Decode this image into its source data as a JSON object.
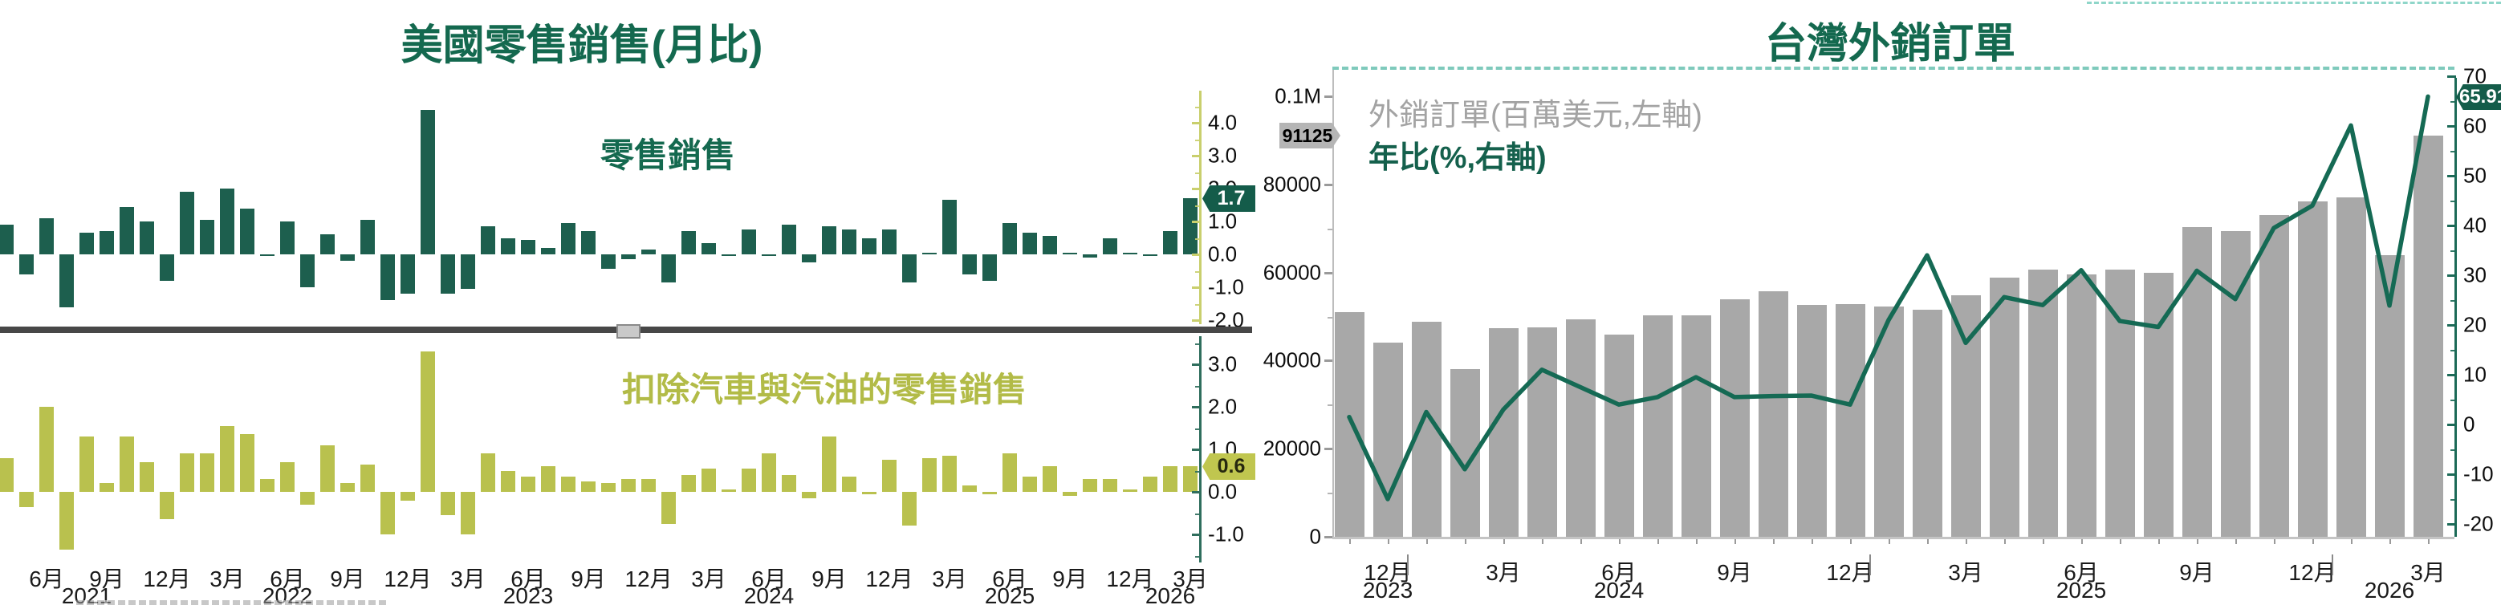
{
  "chart_data": [
    {
      "id": "us_retail_sales_mom",
      "type": "bar",
      "title": "美國零售銷售(月比)",
      "series_label": "零售銷售",
      "unit": "%",
      "x_start": "2021-04",
      "x_end": "2026-03",
      "x_frequency": "monthly",
      "ylim": [
        -2.1,
        4.9
      ],
      "y_ticks": [
        4.0,
        3.0,
        2.0,
        1.0,
        0.0,
        -1.0,
        -2.0
      ],
      "last_value_label": "1.7",
      "values": [
        0.9,
        -0.6,
        1.1,
        -1.6,
        0.65,
        0.7,
        1.45,
        1.0,
        -0.8,
        1.9,
        1.05,
        2.0,
        1.4,
        -0.05,
        1.0,
        -1.0,
        0.6,
        -0.2,
        1.05,
        -1.4,
        -1.2,
        4.4,
        -1.2,
        -1.05,
        0.85,
        0.5,
        0.45,
        0.2,
        0.95,
        0.7,
        -0.45,
        -0.15,
        0.15,
        -0.85,
        0.7,
        0.35,
        -0.05,
        0.75,
        -0.05,
        0.9,
        -0.25,
        0.85,
        0.75,
        0.5,
        0.75,
        -0.85,
        0.05,
        1.65,
        -0.6,
        -0.8,
        0.95,
        0.65,
        0.55,
        0.05,
        -0.1,
        0.5,
        0.03,
        -0.05,
        0.7,
        1.7
      ],
      "x_tick_labels": [
        "6月",
        "9月",
        "12月",
        "3月",
        "6月",
        "9月",
        "12月",
        "3月",
        "6月",
        "9月",
        "12月",
        "3月",
        "6月",
        "9月",
        "12月",
        "3月",
        "6月",
        "9月",
        "12月",
        "3月"
      ],
      "x_tick_indices": [
        2,
        5,
        8,
        11,
        14,
        17,
        20,
        23,
        26,
        29,
        32,
        35,
        38,
        41,
        44,
        47,
        50,
        53,
        56,
        59
      ],
      "year_labels": [
        {
          "i": 4,
          "label": "2021"
        },
        {
          "i": 14,
          "label": "2022"
        },
        {
          "i": 26,
          "label": "2023"
        },
        {
          "i": 38,
          "label": "2024"
        },
        {
          "i": 50,
          "label": "2025"
        },
        {
          "i": 58,
          "label": "2026"
        }
      ]
    },
    {
      "id": "us_retail_sales_ex_auto_gas_mom",
      "type": "bar",
      "title": "美國零售銷售(月比)",
      "series_label": "扣除汽車與汽油的零售銷售",
      "unit": "%",
      "x_start": "2021-04",
      "x_end": "2026-03",
      "x_frequency": "monthly",
      "ylim": [
        -1.65,
        3.65
      ],
      "y_ticks": [
        3.0,
        2.0,
        1.0,
        0.0,
        -1.0
      ],
      "last_value_label": "0.6",
      "values": [
        0.8,
        -0.35,
        2.0,
        -1.35,
        1.3,
        0.2,
        1.3,
        0.7,
        -0.65,
        0.9,
        0.9,
        1.55,
        1.35,
        0.3,
        0.7,
        -0.3,
        1.1,
        0.2,
        0.65,
        -1.0,
        -0.2,
        3.3,
        -0.55,
        -1.0,
        0.9,
        0.5,
        0.35,
        0.6,
        0.35,
        0.25,
        0.2,
        0.3,
        0.3,
        -0.75,
        0.4,
        0.55,
        0.05,
        0.55,
        0.9,
        0.4,
        -0.15,
        1.3,
        0.35,
        -0.05,
        0.75,
        -0.8,
        0.8,
        0.85,
        0.15,
        -0.05,
        0.9,
        0.35,
        0.6,
        -0.1,
        0.3,
        0.3,
        0.05,
        0.35,
        0.6,
        0.6
      ]
    },
    {
      "id": "taiwan_export_orders",
      "type": "bar+line",
      "title": "台灣外銷訂單",
      "x_start": "2023-11",
      "x_end": "2026-03",
      "x_frequency": "monthly",
      "bar_series": {
        "name": "外銷訂單(百萬美元,左軸)",
        "unit": "百萬美元",
        "values": [
          51000,
          44100,
          48900,
          38100,
          47300,
          47500,
          49300,
          45900,
          50200,
          50300,
          54000,
          55700,
          52700,
          52900,
          52300,
          51500,
          54800,
          58900,
          60600,
          59500,
          60600,
          60000,
          70300,
          69400,
          73100,
          76200,
          77100,
          63900,
          91125
        ]
      },
      "line_series": {
        "name": "年比(%,右軸)",
        "unit": "%",
        "values": [
          1.5,
          -15,
          2.5,
          -9,
          3,
          11,
          7.5,
          4,
          5.5,
          9.5,
          5.5,
          5.7,
          5.8,
          4,
          21,
          34,
          16.4,
          25.6,
          24,
          31,
          20.8,
          19.6,
          30.9,
          25.2,
          39.5,
          44,
          60.1,
          23.9,
          65.91
        ]
      },
      "left_axis_tick_labels": [
        "0.1M",
        "80000",
        "60000",
        "40000",
        "20000",
        "0"
      ],
      "left_axis_tick_values": [
        100000,
        80000,
        60000,
        40000,
        20000,
        0
      ],
      "right_axis_ticks": [
        70,
        60,
        50,
        40,
        30,
        20,
        10,
        0,
        -10,
        -20
      ],
      "bar_tag": "91125",
      "line_tag": "65.91",
      "x_tick_labels": [
        {
          "i": 1,
          "label": "12月"
        },
        {
          "i": 4,
          "label": "3月"
        },
        {
          "i": 7,
          "label": "6月"
        },
        {
          "i": 10,
          "label": "9月"
        },
        {
          "i": 13,
          "label": "12月"
        },
        {
          "i": 16,
          "label": "3月"
        },
        {
          "i": 19,
          "label": "6月"
        },
        {
          "i": 22,
          "label": "9月"
        },
        {
          "i": 25,
          "label": "12月"
        },
        {
          "i": 28,
          "label": "3月"
        }
      ],
      "year_labels": [
        {
          "i": 1,
          "label": "2023"
        },
        {
          "i": 7,
          "label": "2024"
        },
        {
          "i": 19,
          "label": "2025"
        },
        {
          "i": 27,
          "label": "2026"
        }
      ]
    }
  ],
  "colors": {
    "dark_green": "#1d5f4e",
    "olive": "#b9c14e",
    "gray_bar": "#a8a8a8",
    "line_green": "#156a54",
    "tag_green_bg": "#145c4a",
    "tag_olive_bg": "#c0c64f",
    "tag_gray_bg": "#b5b5b5"
  }
}
